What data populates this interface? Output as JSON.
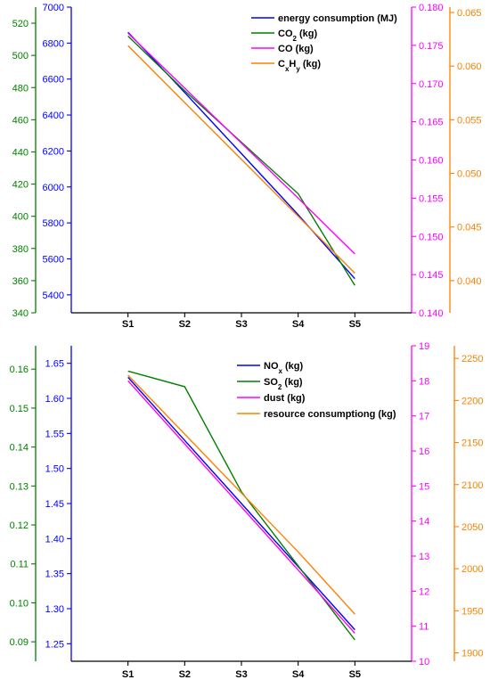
{
  "chart_data": [
    {
      "type": "line",
      "categories": [
        "S1",
        "S2",
        "S3",
        "S4",
        "S5"
      ],
      "grid": false,
      "legend_position": "top-right",
      "axes": [
        {
          "id": "co2",
          "color": "#008000",
          "range": [
            340,
            530
          ],
          "ticks": [
            340,
            360,
            380,
            400,
            420,
            440,
            460,
            480,
            500,
            520
          ],
          "decimals": 0
        },
        {
          "id": "energy",
          "color": "#0000ff",
          "range": [
            5300,
            7000
          ],
          "ticks": [
            5400,
            5600,
            5800,
            6000,
            6200,
            6400,
            6600,
            6800,
            7000
          ],
          "decimals": 0
        },
        {
          "id": "co",
          "color": "#ff00ff",
          "range": [
            0.14,
            0.18
          ],
          "ticks": [
            0.14,
            0.145,
            0.15,
            0.155,
            0.16,
            0.165,
            0.17,
            0.175,
            0.18
          ],
          "decimals": 3
        },
        {
          "id": "cxhy",
          "color": "#ff8000",
          "range": [
            0.037,
            0.0655
          ],
          "ticks": [
            0.04,
            0.045,
            0.05,
            0.055,
            0.06,
            0.065
          ],
          "decimals": 3
        }
      ],
      "series": [
        {
          "name": "energy consumption (MJ)",
          "legend": [
            [
              "energy consumption (MJ)",
              ""
            ]
          ],
          "color": "#0000ff",
          "axis": "energy",
          "values": [
            6860,
            6525,
            6185,
            5845,
            5490
          ]
        },
        {
          "name": "CO2 (kg)",
          "legend": [
            [
              "CO",
              ""
            ],
            [
              "2",
              "sub"
            ],
            [
              " (kg)",
              ""
            ]
          ],
          "color": "#008000",
          "axis": "co2",
          "values": [
            512,
            478,
            446,
            414,
            357
          ]
        },
        {
          "name": "CO (kg)",
          "legend": [
            [
              "CO (kg)",
              ""
            ]
          ],
          "color": "#ff00ff",
          "axis": "co",
          "values": [
            0.1766,
            0.1694,
            0.1622,
            0.155,
            0.1477
          ]
        },
        {
          "name": "CxHy (kg)",
          "legend": [
            [
              "C",
              ""
            ],
            [
              "x",
              "sub"
            ],
            [
              "H",
              ""
            ],
            [
              "y",
              "sub"
            ],
            [
              " (kg)",
              ""
            ]
          ],
          "color": "#ff8000",
          "axis": "cxhy",
          "values": [
            0.0619,
            0.0566,
            0.0513,
            0.046,
            0.0407
          ]
        }
      ]
    },
    {
      "type": "line",
      "categories": [
        "S1",
        "S2",
        "S3",
        "S4",
        "S5"
      ],
      "grid": false,
      "legend_position": "top-right",
      "axes": [
        {
          "id": "so2",
          "color": "#008000",
          "range": [
            0.085,
            0.166
          ],
          "ticks": [
            0.09,
            0.1,
            0.11,
            0.12,
            0.13,
            0.14,
            0.15,
            0.16
          ],
          "decimals": 2
        },
        {
          "id": "nox",
          "color": "#0000ff",
          "range": [
            1.225,
            1.675
          ],
          "ticks": [
            1.25,
            1.3,
            1.35,
            1.4,
            1.45,
            1.5,
            1.55,
            1.6,
            1.65
          ],
          "decimals": 2
        },
        {
          "id": "dust",
          "color": "#ff00ff",
          "range": [
            10,
            19
          ],
          "ticks": [
            10,
            11,
            12,
            13,
            14,
            15,
            16,
            17,
            18,
            19
          ],
          "decimals": 0
        },
        {
          "id": "resource",
          "color": "#ff8000",
          "range": [
            1890,
            2265
          ],
          "ticks": [
            1900,
            1950,
            2000,
            2050,
            2100,
            2150,
            2200,
            2250
          ],
          "decimals": 0
        }
      ],
      "series": [
        {
          "name": "NOx (kg)",
          "legend": [
            [
              "NO",
              ""
            ],
            [
              "x",
              "sub"
            ],
            [
              " (kg)",
              ""
            ]
          ],
          "color": "#0000ff",
          "axis": "nox",
          "values": [
            1.63,
            1.54,
            1.45,
            1.36,
            1.27
          ]
        },
        {
          "name": "SO2 (kg)",
          "legend": [
            [
              "SO",
              ""
            ],
            [
              "2",
              "sub"
            ],
            [
              " (kg)",
              ""
            ]
          ],
          "color": "#008000",
          "axis": "so2",
          "values": [
            0.1595,
            0.1555,
            0.1285,
            0.1095,
            0.0905
          ]
        },
        {
          "name": "dust (kg)",
          "legend": [
            [
              "dust (kg)",
              ""
            ]
          ],
          "color": "#ff00ff",
          "axis": "dust",
          "values": [
            18.0,
            16.2,
            14.4,
            12.6,
            10.8
          ]
        },
        {
          "name": "resource consumptiong (kg)",
          "legend": [
            [
              "resource consumptiong (kg)",
              ""
            ]
          ],
          "color": "#ff8000",
          "axis": "resource",
          "values": [
            2230,
            2160,
            2090,
            2020,
            1946
          ]
        }
      ]
    }
  ]
}
